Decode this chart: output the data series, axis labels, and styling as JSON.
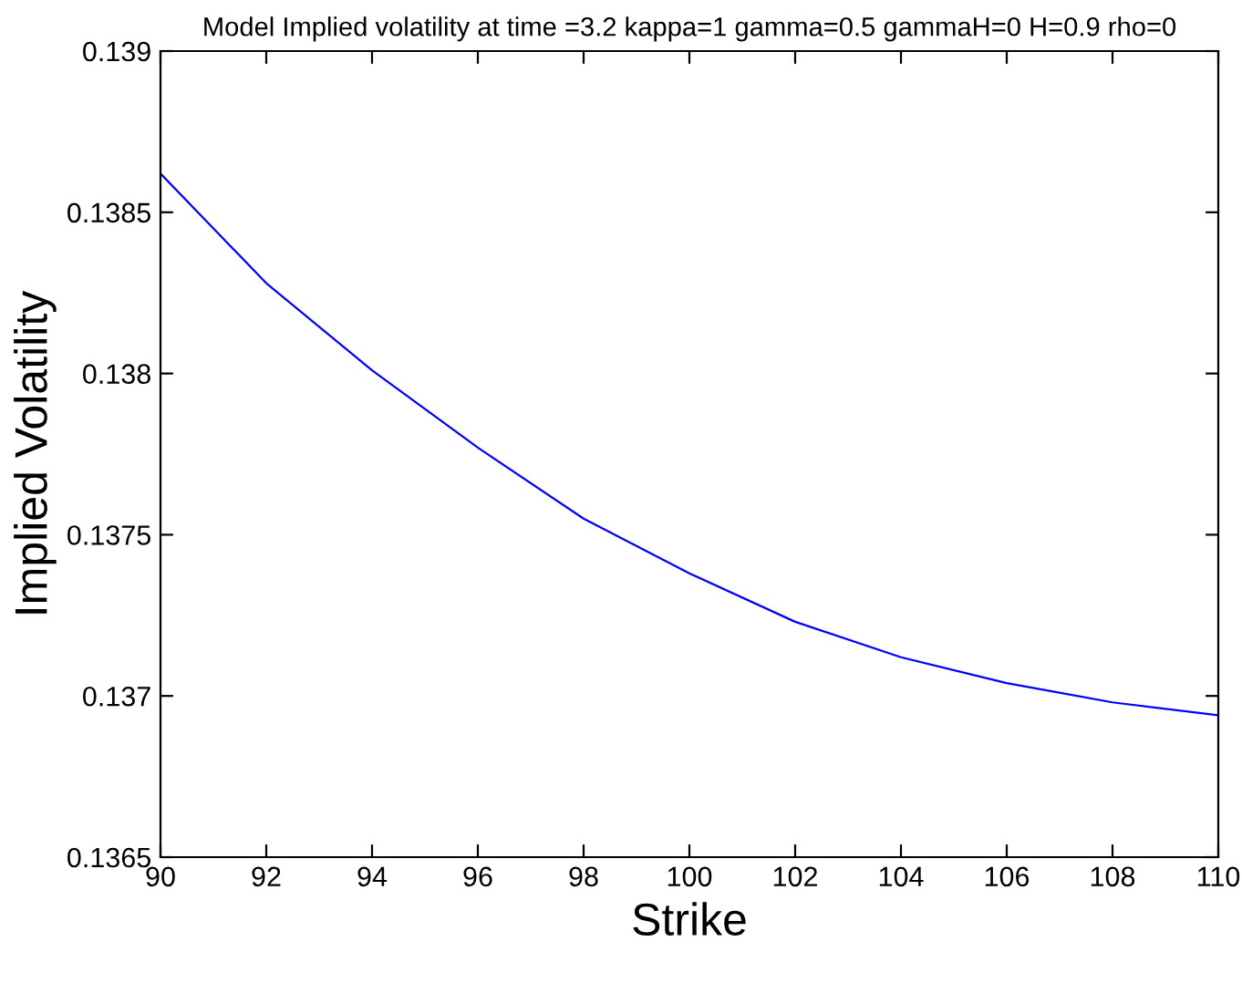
{
  "chart_data": {
    "type": "line",
    "title": "Model Implied volatility at time =3.2 kappa=1 gamma=0.5 gammaH=0 H=0.9 rho=0",
    "xlabel": "Strike",
    "ylabel": "Implied Volatility",
    "x": [
      90,
      91,
      92,
      94,
      96,
      98,
      100,
      102,
      104,
      106,
      108,
      110
    ],
    "series": [
      {
        "color": "#0000ff",
        "values": [
          0.13862,
          0.13845,
          0.13828,
          0.13801,
          0.13777,
          0.13755,
          0.13738,
          0.13723,
          0.13712,
          0.13704,
          0.13698,
          0.13694
        ]
      }
    ],
    "xlim": [
      90,
      110
    ],
    "xticks": [
      90,
      92,
      94,
      96,
      98,
      100,
      102,
      104,
      106,
      108,
      110
    ],
    "ylim": [
      0.1365,
      0.139
    ],
    "yticks": [
      0.1365,
      0.137,
      0.1375,
      0.138,
      0.1385,
      0.139
    ],
    "grid": false,
    "legend": false,
    "marker": "none",
    "line_style": "solid"
  }
}
